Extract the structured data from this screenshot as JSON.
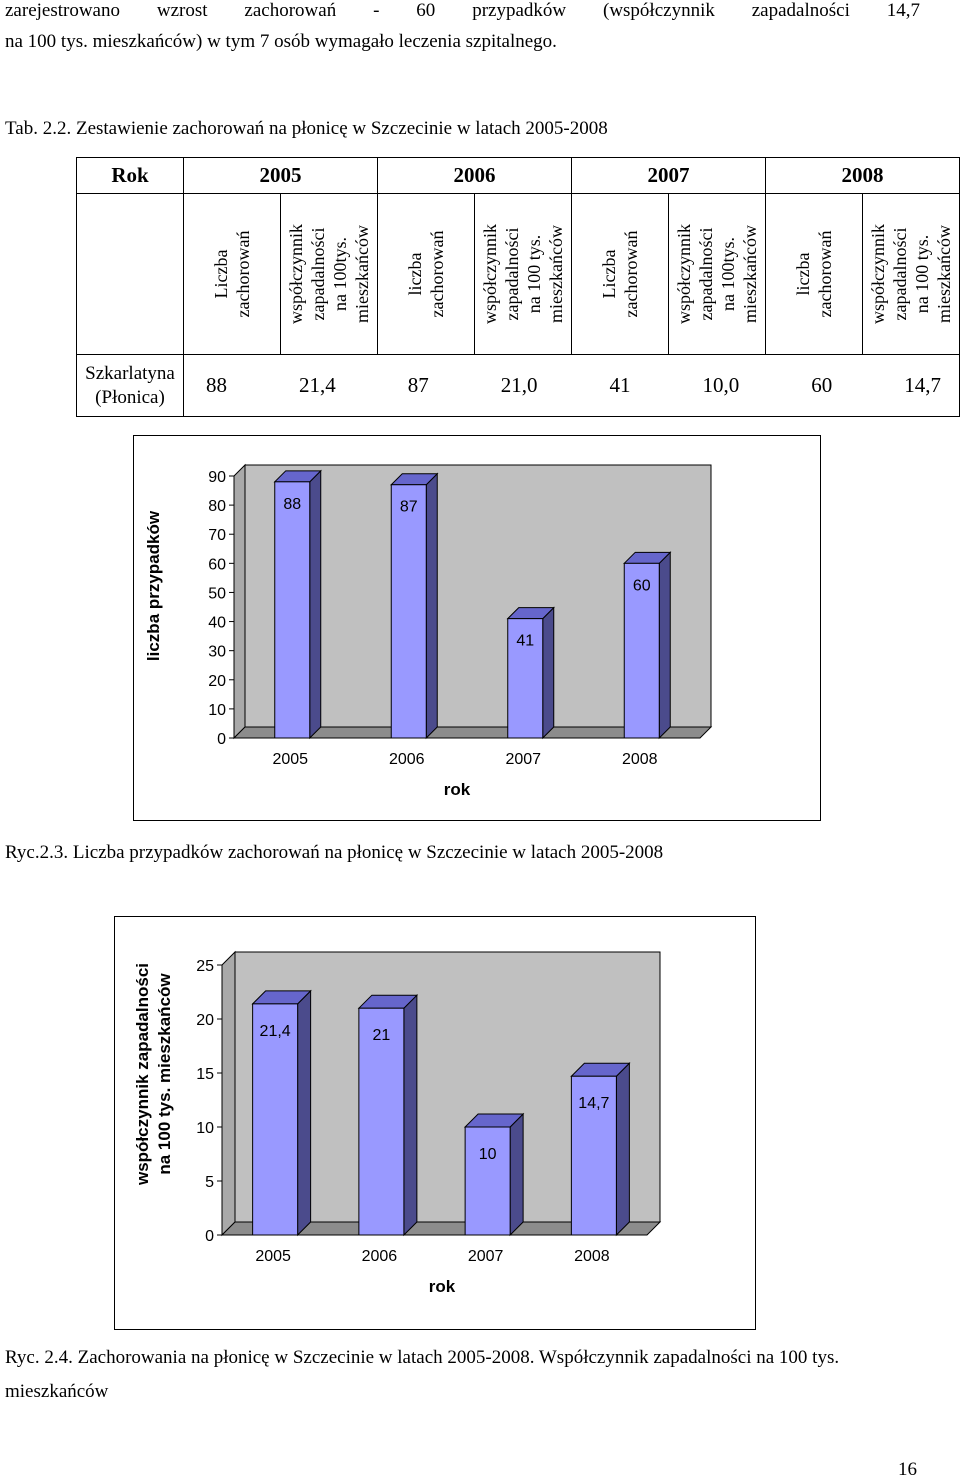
{
  "intro_lines": [
    "zarejestrowano wzrost zachorowań - 60 przypadków (współczynnik zapadalności 14,7",
    "na 100 tys. mieszkańców) w tym 7 osób wymagało leczenia szpitalnego."
  ],
  "table_title": "Tab. 2.2. Zestawienie zachorowań na płonicę w Szczecinie w latach 2005-2008",
  "table": {
    "corner": "Rok",
    "years": [
      "2005",
      "2006",
      "2007",
      "2008"
    ],
    "subheaders": [
      [
        "Liczba",
        "zachorowań"
      ],
      [
        "współczynnik",
        "zapadalności",
        "na 100tys.",
        "mieszkańców"
      ],
      [
        "liczba",
        "zachorowań"
      ],
      [
        "współczynnik",
        "zapadalności",
        "na 100 tys.",
        "mieszkańców"
      ],
      [
        "Liczba",
        "zachorowań"
      ],
      [
        "współczynnik",
        "zapadalności",
        "na 100tys.",
        "mieszkańców"
      ],
      [
        "liczba",
        "zachorowań"
      ],
      [
        "współczynnik",
        "zapadalności",
        "na 100 tys.",
        "mieszkańców"
      ]
    ],
    "row_label": [
      "Szkarlatyna",
      "(Płonica)"
    ],
    "values": [
      "88",
      "21,4",
      "87",
      "21,0",
      "41",
      "10,0",
      "60",
      "14,7"
    ]
  },
  "chart_data": [
    {
      "type": "bar",
      "categories": [
        "2005",
        "2006",
        "2007",
        "2008"
      ],
      "values": [
        88,
        87,
        41,
        60
      ],
      "data_labels": [
        "88",
        "87",
        "41",
        "60"
      ],
      "xlabel": "rok",
      "ylabel": "liczba przypadków",
      "ylim": [
        0,
        90
      ],
      "yticks": [
        "0",
        "10",
        "20",
        "30",
        "40",
        "50",
        "60",
        "70",
        "80",
        "90"
      ],
      "bar_color": "#9999ff",
      "grid": false,
      "legend": "none"
    },
    {
      "type": "bar",
      "categories": [
        "2005",
        "2006",
        "2007",
        "2008"
      ],
      "values": [
        21.4,
        21,
        10,
        14.7
      ],
      "data_labels": [
        "21,4",
        "21",
        "10",
        "14,7"
      ],
      "xlabel": "rok",
      "ylabel_lines": [
        "współczynnik zapadalności",
        "na 100 tys. mieszkańców"
      ],
      "ylim": [
        0,
        25
      ],
      "yticks": [
        "0",
        "5",
        "10",
        "15",
        "20",
        "25"
      ],
      "bar_color": "#9999ff",
      "grid": false,
      "legend": "none"
    }
  ],
  "captions": [
    "Ryc.2.3. Liczba przypadków zachorowań na płonicę w Szczecinie w latach 2005-2008",
    "Ryc. 2.4. Zachorowania na płonicę w Szczecinie w latach 2005-2008. Współczynnik zapadalności na 100 tys.",
    "mieszkańców"
  ],
  "page_number": "16"
}
